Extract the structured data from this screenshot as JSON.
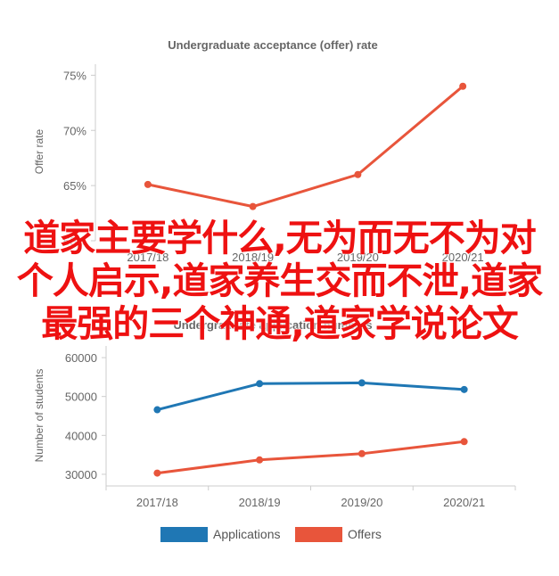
{
  "chart_data": [
    {
      "type": "line",
      "title": "Undergraduate acceptance (offer) rate",
      "ylabel": "Offer rate",
      "categories": [
        "2017/18",
        "2018/19",
        "2019/20",
        "2020/21"
      ],
      "ylim": [
        60,
        76
      ],
      "yticks": [
        60,
        65,
        70,
        75
      ],
      "ytick_labels": [
        "60%",
        "65%",
        "70%",
        "75%"
      ],
      "grid": false,
      "series": [
        {
          "values": [
            65.1,
            63.1,
            66.0,
            74.0
          ],
          "color": "#e8553b"
        }
      ]
    },
    {
      "type": "line",
      "title": "Undergraduate application numbers",
      "ylabel": "Number of students",
      "categories": [
        "2017/18",
        "2018/19",
        "2019/20",
        "2020/21"
      ],
      "ylim": [
        27000,
        63000
      ],
      "yticks": [
        30000,
        40000,
        50000,
        60000
      ],
      "ytick_labels": [
        "30000",
        "40000",
        "50000",
        "60000"
      ],
      "legend_position": "bottom",
      "series": [
        {
          "name": "Applications",
          "values": [
            46600,
            53300,
            53500,
            51800
          ],
          "color": "#1f77b4"
        },
        {
          "name": "Offers",
          "values": [
            30300,
            33700,
            35300,
            38400
          ],
          "color": "#e8553b"
        }
      ]
    }
  ],
  "overlay_text": "道家主要学什么,无为而无不为对个人启示,道家养生交而不泄,道家最强的三个神通,道家学说论文"
}
